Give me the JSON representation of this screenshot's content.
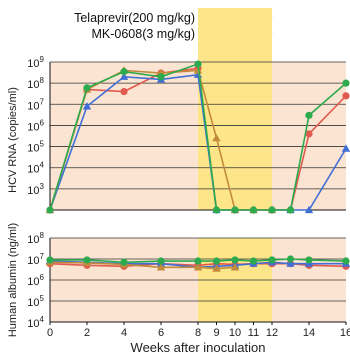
{
  "chart_data": [
    {
      "type": "line",
      "panel": "hcv",
      "ylabel": "HCV RNA (copies/ml)",
      "yscale": "log",
      "ylim": [
        100,
        1000000000
      ],
      "yticks": [
        {
          "value": 1000000000,
          "base": "10",
          "exp": "9"
        },
        {
          "value": 100000000,
          "base": "10",
          "exp": "8"
        },
        {
          "value": 10000000,
          "base": "10",
          "exp": "7"
        },
        {
          "value": 1000000,
          "base": "10",
          "exp": "6"
        },
        {
          "value": 100000,
          "base": "10",
          "exp": "5"
        },
        {
          "value": 10000,
          "base": "10",
          "exp": "4"
        },
        {
          "value": 1000,
          "base": "10",
          "exp": "3"
        }
      ],
      "xlim": [
        0,
        16
      ],
      "treatment_band": [
        8,
        12
      ],
      "series": [
        {
          "color": "#e05a4e",
          "marker": "circle",
          "points": [
            [
              0,
              100
            ],
            [
              2,
              50000000
            ],
            [
              4,
              40000000
            ],
            [
              6,
              300000000
            ],
            [
              8,
              500000000
            ],
            [
              9,
              100
            ],
            [
              10,
              100
            ],
            [
              11,
              100
            ],
            [
              12,
              100
            ],
            [
              13,
              100
            ],
            [
              14,
              400000
            ],
            [
              16,
              25000000
            ]
          ]
        },
        {
          "color": "#3f6fd6",
          "marker": "triangle",
          "points": [
            [
              0,
              100
            ],
            [
              2,
              8000000
            ],
            [
              4,
              200000000
            ],
            [
              6,
              150000000
            ],
            [
              8,
              250000000
            ],
            [
              9,
              100
            ],
            [
              10,
              100
            ],
            [
              11,
              100
            ],
            [
              12,
              100
            ],
            [
              13,
              100
            ],
            [
              14,
              100
            ],
            [
              16,
              80000
            ]
          ]
        },
        {
          "color": "#c38a3a",
          "marker": "triangle",
          "points": [
            [
              0,
              100
            ],
            [
              2,
              50000000
            ],
            [
              4,
              400000000
            ],
            [
              6,
              300000000
            ],
            [
              8,
              400000000
            ],
            [
              9,
              250000
            ],
            [
              10,
              100
            ],
            [
              11,
              100
            ],
            [
              12,
              100
            ]
          ]
        },
        {
          "color": "#2eaa4e",
          "marker": "circle",
          "points": [
            [
              0,
              100
            ],
            [
              2,
              60000000
            ],
            [
              4,
              350000000
            ],
            [
              6,
              200000000
            ],
            [
              8,
              800000000
            ],
            [
              9,
              100
            ],
            [
              10,
              100
            ],
            [
              11,
              100
            ],
            [
              12,
              100
            ],
            [
              13,
              100
            ],
            [
              14,
              3000000
            ],
            [
              16,
              100000000
            ]
          ]
        }
      ]
    },
    {
      "type": "line",
      "panel": "albumin",
      "ylabel": "Human albumin (ng/ml)",
      "yscale": "log",
      "ylim": [
        10000,
        100000000
      ],
      "yticks": [
        {
          "value": 100000000,
          "base": "10",
          "exp": "8"
        },
        {
          "value": 10000000,
          "base": "10",
          "exp": "7"
        },
        {
          "value": 1000000,
          "base": "10",
          "exp": "6"
        },
        {
          "value": 100000,
          "base": "10",
          "exp": "5"
        },
        {
          "value": 10000,
          "base": "10",
          "exp": "4"
        }
      ],
      "xlabel": "Weeks after inoculation",
      "xticks": [
        "0",
        "2",
        "4",
        "6",
        "8",
        "9",
        "10",
        "11",
        "12",
        "14",
        "16"
      ],
      "xtick_values": [
        0,
        2,
        4,
        6,
        8,
        9,
        10,
        11,
        12,
        14,
        16
      ],
      "series": [
        {
          "color": "#e05a4e",
          "marker": "circle",
          "points": [
            [
              0,
              6000000
            ],
            [
              2,
              5000000
            ],
            [
              4,
              4500000
            ],
            [
              6,
              6000000
            ],
            [
              8,
              5000000
            ],
            [
              9,
              6000000
            ],
            [
              10,
              5500000
            ],
            [
              11,
              6000000
            ],
            [
              12,
              6000000
            ],
            [
              13,
              6000000
            ],
            [
              14,
              5000000
            ],
            [
              16,
              4500000
            ]
          ]
        },
        {
          "color": "#3f6fd6",
          "marker": "triangle",
          "points": [
            [
              0,
              8000000
            ],
            [
              2,
              7000000
            ],
            [
              4,
              6000000
            ],
            [
              6,
              6000000
            ],
            [
              8,
              4000000
            ],
            [
              9,
              4500000
            ],
            [
              10,
              5000000
            ],
            [
              11,
              6000000
            ],
            [
              12,
              7000000
            ],
            [
              13,
              6000000
            ],
            [
              14,
              6000000
            ],
            [
              16,
              6000000
            ]
          ]
        },
        {
          "color": "#c38a3a",
          "marker": "triangle",
          "points": [
            [
              0,
              7000000
            ],
            [
              2,
              6500000
            ],
            [
              4,
              5500000
            ],
            [
              6,
              4000000
            ],
            [
              8,
              4000000
            ],
            [
              9,
              3500000
            ],
            [
              10,
              4000000
            ]
          ]
        },
        {
          "color": "#2eaa4e",
          "marker": "circle",
          "points": [
            [
              0,
              9000000
            ],
            [
              2,
              9000000
            ],
            [
              4,
              7000000
            ],
            [
              6,
              8000000
            ],
            [
              8,
              8000000
            ],
            [
              9,
              8000000
            ],
            [
              10,
              9000000
            ],
            [
              11,
              8000000
            ],
            [
              12,
              9000000
            ],
            [
              13,
              10000000
            ],
            [
              14,
              9000000
            ],
            [
              16,
              8000000
            ]
          ]
        }
      ]
    }
  ],
  "annotations": {
    "drug1": "Telaprevir(200 mg/kg)",
    "drug2": "MK-0608(3 mg/kg)"
  },
  "colors": {
    "plot_background": "#fbe4d2",
    "treatment_band": "#fde68a",
    "grid": "#333333"
  }
}
